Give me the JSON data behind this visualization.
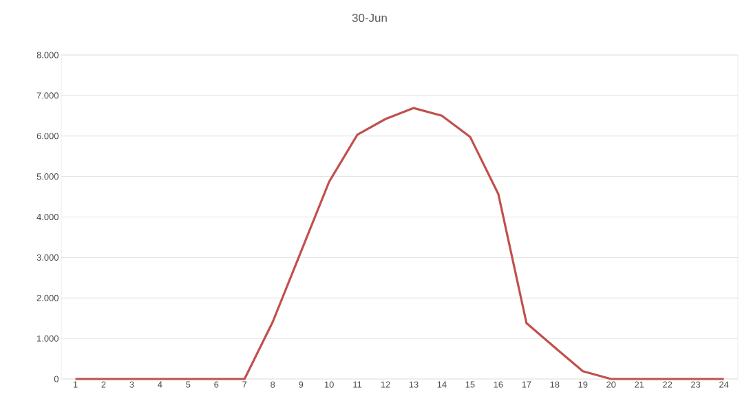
{
  "chart_data": {
    "type": "line",
    "title": "30-Jun",
    "categories": [
      "1",
      "2",
      "3",
      "4",
      "5",
      "6",
      "7",
      "8",
      "9",
      "10",
      "11",
      "12",
      "13",
      "14",
      "15",
      "16",
      "17",
      "18",
      "19",
      "20",
      "21",
      "22",
      "23",
      "24"
    ],
    "series": [
      {
        "color": "#c0504d",
        "values": [
          0,
          0,
          0,
          0,
          0,
          0,
          0,
          1410,
          3140,
          4870,
          6030,
          6420,
          6690,
          6500,
          5980,
          4570,
          1380,
          780,
          190,
          0,
          0,
          0,
          0,
          0
        ]
      }
    ],
    "ylim": [
      0,
      8000
    ],
    "yticks": [
      0,
      {
        "value": 1000,
        "label": "1.000"
      },
      {
        "value": 2000,
        "label": "2.000"
      },
      {
        "value": 3000,
        "label": "3.000"
      },
      {
        "value": 4000,
        "label": "4.000"
      },
      {
        "value": 5000,
        "label": "5.000"
      },
      {
        "value": 6000,
        "label": "6.000"
      },
      {
        "value": 7000,
        "label": "7.000"
      },
      {
        "value": 8000,
        "label": "8.000"
      }
    ],
    "grid": "y",
    "marker": "none",
    "line_style": "solid"
  }
}
